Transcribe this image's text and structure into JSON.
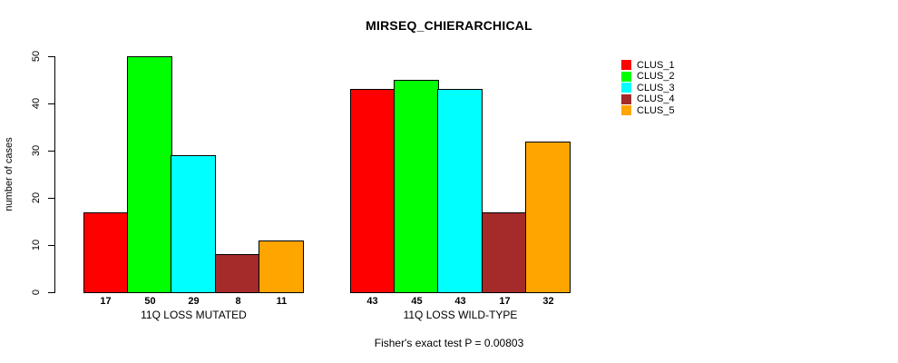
{
  "chart_data": {
    "type": "bar",
    "title": "MIRSEQ_CHIERARCHICAL",
    "ylabel": "number of cases",
    "ylim": [
      0,
      50
    ],
    "yticks": [
      0,
      10,
      20,
      30,
      40,
      50
    ],
    "grid": false,
    "legend_position": "right",
    "background_color": "#FFFFFF",
    "axis_color": "#000000",
    "legend": [
      {
        "label": "CLUS_1",
        "color": "#FF0000"
      },
      {
        "label": "CLUS_2",
        "color": "#00FF00"
      },
      {
        "label": "CLUS_3",
        "color": "#00FFFF"
      },
      {
        "label": "CLUS_4",
        "color": "#A52A2A"
      },
      {
        "label": "CLUS_5",
        "color": "#FFA500"
      }
    ],
    "groups": [
      {
        "label": "11Q LOSS MUTATED",
        "values": [
          17,
          50,
          29,
          8,
          11
        ]
      },
      {
        "label": "11Q LOSS WILD-TYPE",
        "values": [
          43,
          45,
          43,
          17,
          32
        ]
      }
    ],
    "annotation": "Fisher's exact test P = 0.00803"
  }
}
